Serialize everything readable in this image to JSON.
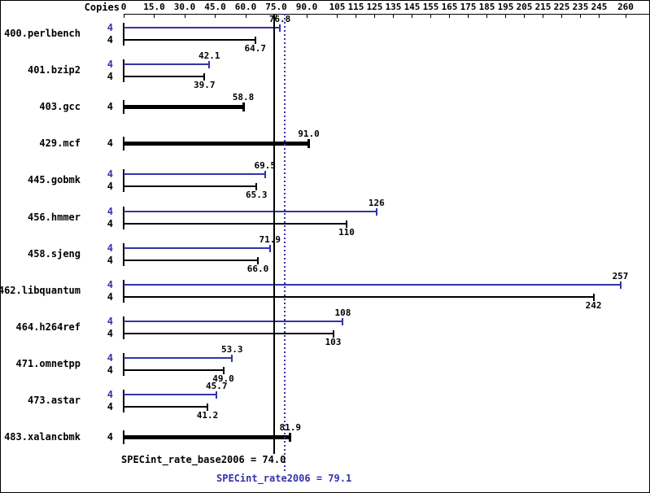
{
  "header": {
    "copies_label": "Copies"
  },
  "chart_data": {
    "type": "bar",
    "orientation": "horizontal",
    "title": "",
    "x_axis": {
      "tick_values": [
        0,
        15,
        30,
        45,
        60,
        75,
        90,
        105,
        115,
        125,
        135,
        145,
        155,
        165,
        175,
        185,
        195,
        205,
        215,
        225,
        235,
        245,
        260
      ],
      "tick_labels": [
        "0",
        "15.0",
        "30.0",
        "45.0",
        "60.0",
        "75.0",
        "90.0",
        "105",
        "115",
        "125",
        "135",
        "145",
        "155",
        "165",
        "175",
        "185",
        "195",
        "205",
        "215",
        "225",
        "235",
        "245",
        "260"
      ],
      "range": [
        0,
        260
      ]
    },
    "series_colors": {
      "peak": "#3333aa",
      "base": "#000000"
    },
    "benchmarks": [
      {
        "name": "400.perlbench",
        "copies": 4,
        "display": "pair",
        "peak": 76.8,
        "peak_label": "76.8",
        "base": 64.7,
        "base_label": "64.7"
      },
      {
        "name": "401.bzip2",
        "copies": 4,
        "display": "pair",
        "peak": 42.1,
        "peak_label": "42.1",
        "base": 39.7,
        "base_label": "39.7"
      },
      {
        "name": "403.gcc",
        "copies": 4,
        "display": "single-bold",
        "peak": null,
        "peak_label": null,
        "base": 58.8,
        "base_label": "58.8"
      },
      {
        "name": "429.mcf",
        "copies": 4,
        "display": "single-bold",
        "peak": null,
        "peak_label": null,
        "base": 91.0,
        "base_label": "91.0"
      },
      {
        "name": "445.gobmk",
        "copies": 4,
        "display": "pair",
        "peak": 69.5,
        "peak_label": "69.5",
        "base": 65.3,
        "base_label": "65.3"
      },
      {
        "name": "456.hmmer",
        "copies": 4,
        "display": "pair",
        "peak": 126,
        "peak_label": "126",
        "base": 110,
        "base_label": "110"
      },
      {
        "name": "458.sjeng",
        "copies": 4,
        "display": "pair",
        "peak": 71.9,
        "peak_label": "71.9",
        "base": 66.0,
        "base_label": "66.0"
      },
      {
        "name": "462.libquantum",
        "copies": 4,
        "display": "pair",
        "peak": 257,
        "peak_label": "257",
        "base": 242,
        "base_label": "242"
      },
      {
        "name": "464.h264ref",
        "copies": 4,
        "display": "pair",
        "peak": 108,
        "peak_label": "108",
        "base": 103,
        "base_label": "103"
      },
      {
        "name": "471.omnetpp",
        "copies": 4,
        "display": "pair",
        "peak": 53.3,
        "peak_label": "53.3",
        "base": 49.0,
        "base_label": "49.0"
      },
      {
        "name": "473.astar",
        "copies": 4,
        "display": "pair",
        "peak": 45.7,
        "peak_label": "45.7",
        "base": 41.2,
        "base_label": "41.2"
      },
      {
        "name": "483.xalancbmk",
        "copies": 4,
        "display": "single-bold",
        "peak": null,
        "peak_label": null,
        "base": 81.9,
        "base_label": "81.9"
      }
    ],
    "reference_lines": [
      {
        "value": 74.0,
        "style": "solid",
        "color": "#000000",
        "label": "SPECint_rate_base2006 = 74.0"
      },
      {
        "value": 79.1,
        "style": "dotted",
        "color": "#3333aa",
        "label": "SPECint_rate2006 = 79.1"
      }
    ]
  }
}
